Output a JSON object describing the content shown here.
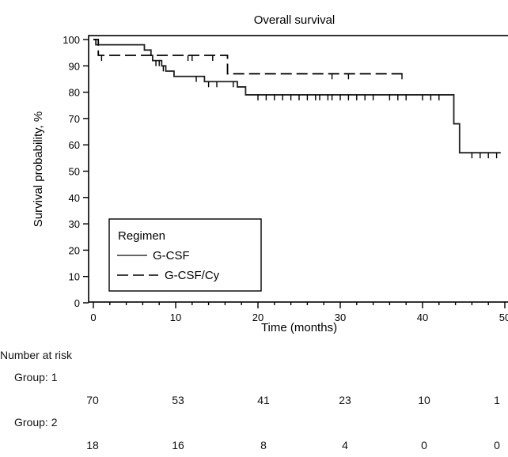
{
  "chart_data": {
    "type": "line",
    "title": "Overall survival",
    "xlabel": "Time (months)",
    "ylabel": "Survival probability, %",
    "xlim": [
      0,
      50
    ],
    "ylim": [
      0,
      100
    ],
    "xticks": [
      "0",
      "10",
      "20",
      "30",
      "40",
      "50"
    ],
    "yticks": [
      "0",
      "10",
      "20",
      "30",
      "40",
      "50",
      "60",
      "70",
      "80",
      "90",
      "100"
    ],
    "legend": {
      "title": "Regimen",
      "placement": "bottom-left",
      "entries": [
        "G-CSF",
        "G-CSF/Cy"
      ]
    },
    "series": [
      {
        "name": "G-CSF",
        "style": "solid",
        "x": [
          0,
          0.3,
          0.3,
          5.8,
          6.2,
          7,
          7.2,
          8.3,
          8.8,
          9.8,
          10.5,
          13.5,
          16.2,
          17.5,
          18.5,
          43.2,
          43.8,
          44.5,
          50
        ],
        "y": [
          100,
          100,
          98,
          98,
          96,
          94,
          92,
          90,
          88,
          86,
          86,
          84,
          84,
          82,
          79,
          79,
          68,
          57,
          57
        ],
        "end_x": 49.5,
        "censored_x": [
          7.6,
          8.0,
          8.5,
          12.5,
          14.0,
          15.0,
          17.0,
          20,
          21,
          22,
          23,
          24,
          25,
          26,
          27,
          27.5,
          28.5,
          29,
          30,
          31,
          32,
          33,
          34,
          36,
          37,
          38,
          40,
          41,
          42,
          46,
          47,
          48,
          49
        ]
      },
      {
        "name": "G-CSF/Cy",
        "style": "dashed",
        "x": [
          0,
          0.6,
          16.3,
          50
        ],
        "y": [
          100,
          94,
          87,
          87
        ],
        "end_x": 38,
        "censored_x": [
          1.0,
          11.5,
          12.0,
          14.5,
          29.0,
          31.0,
          37.5
        ]
      }
    ],
    "number_at_risk": {
      "label": "Number at risk",
      "times": [
        0,
        10,
        20,
        30,
        40,
        50
      ],
      "groups": [
        {
          "label": "Group: 1",
          "values": [
            "70",
            "53",
            "41",
            "23",
            "10",
            "1"
          ]
        },
        {
          "label": "Group: 2",
          "values": [
            "18",
            "16",
            "8",
            "4",
            "0",
            "0"
          ]
        }
      ]
    }
  }
}
